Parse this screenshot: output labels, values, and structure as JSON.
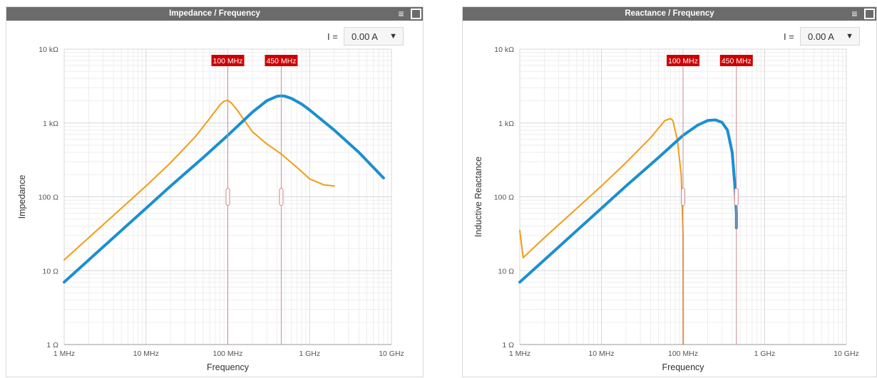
{
  "panels": [
    {
      "title": "Impedance / Frequency",
      "current_label": "I =",
      "current_value": "0.00 A",
      "menu_icon": "hamburger-menu-icon",
      "maximize_icon": "maximize-icon"
    },
    {
      "title": "Reactance / Frequency",
      "current_label": "I =",
      "current_value": "0.00 A",
      "menu_icon": "hamburger-menu-icon",
      "maximize_icon": "maximize-icon"
    }
  ],
  "chart_data": [
    {
      "type": "line",
      "title": "Impedance / Frequency",
      "xlabel": "Frequency",
      "ylabel": "Impedance",
      "x_scale": "log",
      "y_scale": "log",
      "xlim": [
        "1 MHz",
        "10 GHz"
      ],
      "ylim": [
        "1 Ω",
        "10 kΩ"
      ],
      "x_ticks": [
        "1 MHz",
        "10 MHz",
        "100 MHz",
        "1 GHz",
        "10 GHz"
      ],
      "y_ticks": [
        "10 kΩ",
        "1 kΩ",
        "100 Ω",
        "10 Ω",
        "1 Ω"
      ],
      "grid": true,
      "markers": [
        "100 MHz",
        "450 MHz"
      ],
      "colors": [
        "#f39c12",
        "#1a8fd1"
      ],
      "series": [
        {
          "color": "#f39c12",
          "x_mhz": [
            1,
            2,
            5,
            10,
            20,
            40,
            60,
            80,
            90,
            100,
            110,
            130,
            160,
            200,
            300,
            450,
            700,
            1000,
            1500,
            2000
          ],
          "y_ohm": [
            14,
            28,
            70,
            140,
            290,
            650,
            1150,
            1750,
            1980,
            2020,
            1880,
            1500,
            1080,
            760,
            520,
            380,
            250,
            175,
            145,
            140
          ]
        },
        {
          "color": "#1a8fd1",
          "x_mhz": [
            1,
            2,
            5,
            10,
            20,
            50,
            100,
            200,
            300,
            400,
            450,
            500,
            600,
            800,
            1000,
            2000,
            4000,
            8000
          ],
          "y_ohm": [
            7,
            14,
            35,
            70,
            140,
            340,
            680,
            1400,
            2000,
            2300,
            2330,
            2300,
            2150,
            1800,
            1500,
            800,
            400,
            180
          ]
        }
      ]
    },
    {
      "type": "line",
      "title": "Reactance / Frequency",
      "xlabel": "Frequency",
      "ylabel": "Inductive Reactance",
      "x_scale": "log",
      "y_scale": "log",
      "xlim": [
        "1 MHz",
        "10 GHz"
      ],
      "ylim": [
        "1 Ω",
        "10 kΩ"
      ],
      "x_ticks": [
        "1 MHz",
        "10 MHz",
        "100 MHz",
        "1 GHz",
        "10 GHz"
      ],
      "y_ticks": [
        "10 kΩ",
        "1 kΩ",
        "100 Ω",
        "10 Ω",
        "1 Ω"
      ],
      "grid": true,
      "markers": [
        "100 MHz",
        "450 MHz"
      ],
      "colors": [
        "#f39c12",
        "#1a8fd1"
      ],
      "series": [
        {
          "color": "#f39c12",
          "x_mhz": [
            1,
            1.1,
            2,
            5,
            10,
            20,
            40,
            60,
            70,
            75,
            85,
            95,
            100,
            100.5
          ],
          "y_ohm": [
            35,
            15,
            28,
            70,
            140,
            290,
            630,
            1080,
            1150,
            1080,
            600,
            200,
            30,
            1
          ]
        },
        {
          "color": "#1a8fd1",
          "x_mhz": [
            1,
            2,
            5,
            10,
            20,
            50,
            100,
            150,
            200,
            250,
            300,
            350,
            400,
            430,
            450,
            450.5
          ],
          "y_ohm": [
            7,
            14,
            35,
            70,
            140,
            340,
            680,
            930,
            1080,
            1100,
            1020,
            800,
            400,
            150,
            60,
            38
          ]
        }
      ]
    }
  ]
}
